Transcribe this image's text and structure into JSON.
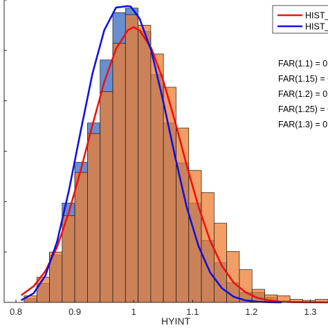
{
  "chart_data": {
    "type": "bar",
    "xlabel": "HYINT",
    "x_ticks": [
      "0.8",
      "0.9",
      "1",
      "1.1",
      "1.2",
      "1.3"
    ],
    "xlim": [
      0.78,
      1.33
    ],
    "ylim": [
      0,
      60
    ],
    "grid": false,
    "legend_position": "top-right",
    "bin_width": 0.0215,
    "series": [
      {
        "name": "HIST_",
        "kind": "histogram",
        "color": "#4472C4",
        "bin_starts": [
          0.814,
          0.8355,
          0.857,
          0.8785,
          0.9,
          0.9215,
          0.943,
          0.9645,
          0.986,
          1.0075,
          1.029,
          1.0505,
          1.072,
          1.0935,
          1.115,
          1.1365,
          1.158,
          1.1795,
          1.201,
          1.2225,
          1.244,
          1.2655
        ],
        "values": [
          0.8,
          3.8,
          9.4,
          19.7,
          27.8,
          35.6,
          48.1,
          57.5,
          58.4,
          53.8,
          45.2,
          35.6,
          27.7,
          19.7,
          12.3,
          7.9,
          3.9,
          2.0,
          2.0,
          1.0,
          0.3,
          0.2
        ]
      },
      {
        "name": "HIST_",
        "kind": "histogram",
        "color": "#ED7D31",
        "bin_starts": [
          0.814,
          0.8355,
          0.857,
          0.8785,
          0.9,
          0.9215,
          0.943,
          0.9645,
          0.986,
          1.0075,
          1.029,
          1.0505,
          1.072,
          1.0935,
          1.115,
          1.1365,
          1.158,
          1.1795,
          1.201,
          1.2225,
          1.244,
          1.2655,
          1.287,
          1.3085
        ],
        "values": [
          1.3,
          5.0,
          10.0,
          17.2,
          25.8,
          33.5,
          41.8,
          51.4,
          57.1,
          55.0,
          49.3,
          42.7,
          34.6,
          26.2,
          21.8,
          15.7,
          10.1,
          6.5,
          2.6,
          1.5,
          1.3,
          0.6,
          0.4,
          0.6
        ]
      },
      {
        "name": "HIST_",
        "kind": "curve",
        "color": "#EE1111",
        "x": [
          0.81,
          0.83,
          0.85,
          0.87,
          0.89,
          0.91,
          0.93,
          0.95,
          0.97,
          0.99,
          1.0,
          1.01,
          1.03,
          1.05,
          1.07,
          1.09,
          1.11,
          1.13,
          1.15,
          1.17,
          1.19,
          1.21,
          1.23,
          1.25,
          1.27,
          1.29,
          1.31,
          1.33
        ],
        "y": [
          1.5,
          3.2,
          6.2,
          11.0,
          17.9,
          26.2,
          35.2,
          43.7,
          50.3,
          54.0,
          54.6,
          54.0,
          50.4,
          44.1,
          36.0,
          27.2,
          19.0,
          12.2,
          7.2,
          3.9,
          2.0,
          0.9,
          0.4,
          0.15,
          0.06,
          0.02,
          0.01,
          0.0
        ]
      },
      {
        "name": "HIST_",
        "kind": "curve",
        "color": "#1111DD",
        "x": [
          0.81,
          0.83,
          0.85,
          0.87,
          0.89,
          0.91,
          0.93,
          0.95,
          0.97,
          0.99,
          0.995,
          1.01,
          1.03,
          1.05,
          1.07,
          1.09,
          1.11,
          1.13,
          1.15,
          1.17,
          1.19,
          1.21,
          1.23,
          1.25
        ],
        "y": [
          0.5,
          1.8,
          5.3,
          12.1,
          22.2,
          34.0,
          45.4,
          54.0,
          58.5,
          58.8,
          58.7,
          56.3,
          49.9,
          40.0,
          29.1,
          18.9,
          11.2,
          5.9,
          2.8,
          1.1,
          0.4,
          0.13,
          0.04,
          0.01
        ]
      }
    ],
    "legend": [
      {
        "label": "HIST_",
        "color": "#EE1111"
      },
      {
        "label": "HIST_",
        "color": "#1111DD"
      }
    ],
    "annotations": [
      "FAR(1.1) = 0",
      "FAR(1.15) = 0",
      "FAR(1.2) = 0",
      "FAR(1.25) = 0",
      "FAR(1.3) = 0"
    ]
  }
}
